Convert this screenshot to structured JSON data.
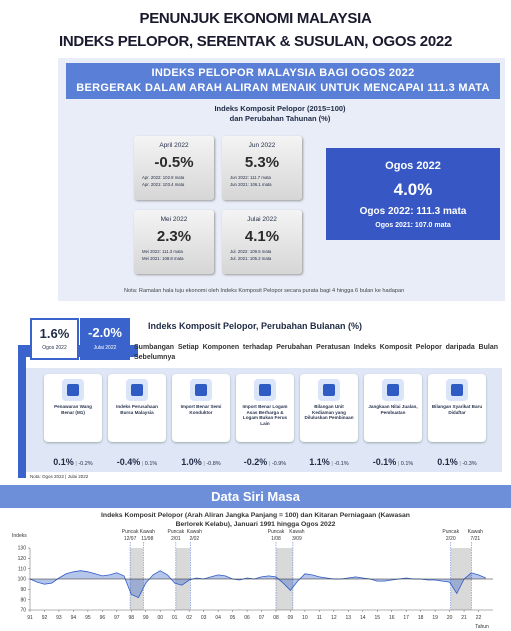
{
  "header": {
    "line1": "PENUNJUK EKONOMI MALAYSIA",
    "line2": "INDEKS PELOPOR, SERENTAK & SUSULAN, OGOS 2022"
  },
  "banner": {
    "line1": "INDEKS PELOPOR MALAYSIA BAGI OGOS 2022",
    "line2": "BERGERAK DALAM ARAH ALIRAN MENAIK UNTUK MENCAPAI 111.3 MATA"
  },
  "annual": {
    "title": "Indeks Komposit Pelopor (2015=100)",
    "title2": "dan Perubahan Tahunan (%)",
    "cards": [
      {
        "month": "April 2022",
        "change": "-0.5%",
        "current": "Apr. 2022: 102.8 mata",
        "previous": "Apr. 2021: 103.4 mata"
      },
      {
        "month": "Jun 2022",
        "change": "5.3%",
        "current": "Jun 2022: 111.7 mata",
        "previous": "Jun 2021: 106.1 mata"
      },
      {
        "month": "Mei 2022",
        "change": "2.3%",
        "current": "Mei 2022: 111.3 mata",
        "previous": "Mei 2021: 108.8 mata"
      },
      {
        "month": "Julai 2022",
        "change": "4.1%",
        "current": "Jul. 2022: 109.5 mata",
        "previous": "Jul. 2021: 105.2 mata"
      }
    ]
  },
  "highlight": {
    "month": "Ogos 2022",
    "change": "4.0%",
    "current": "Ogos 2022: 111.3 mata",
    "previous": "Ogos 2021: 107.0 mata"
  },
  "note": "Nota: Ramalan hala tuju ekonomi oleh Indeks Komposit Pelopor secara purata bagi 4 hingga 6 bulan ke hadapan",
  "monthly": {
    "current": {
      "value": "1.6%",
      "label": "Ogos 2022"
    },
    "previous": {
      "value": "-2.0%",
      "label": "Julai 2022"
    },
    "title": "Indeks Komposit Pelopor, Perubahan Bulanan (%)",
    "subtitle": "Sumbangan Setiap Komponen terhadap Perubahan Peratusan Indeks Komposit Pelopor daripada Bulan Sebelumnya",
    "components": [
      {
        "name": "Penawaran Wang Benar (M1)",
        "current": "0.1%",
        "previous": "-0.2%"
      },
      {
        "name": "Indeks Perusahaan Bursa Malaysia",
        "current": "-0.4%",
        "previous": "0.1%"
      },
      {
        "name": "Import Benar Semi Konduktor",
        "current": "1.0%",
        "previous": "-0.8%"
      },
      {
        "name": "Import Benar Logam Asas Berharga & Logam Bukan Ferus Lain",
        "current": "-0.2%",
        "previous": "-0.9%"
      },
      {
        "name": "Bilangan Unit Kediaman yang Diluluskan Pembinaan",
        "current": "1.1%",
        "previous": "-0.1%"
      },
      {
        "name": "Jangkaan Nilai Jualan, Pembuatan",
        "current": "-0.1%",
        "previous": "0.1%"
      },
      {
        "name": "Bilangan Syarikat Baru Didaftar",
        "current": "0.1%",
        "previous": "-0.3%"
      }
    ],
    "note": "Nota: Ogos 2022 | Julai 2022"
  },
  "section_title": "Data Siri Masa",
  "chart_data": {
    "type": "line",
    "title": "Indeks Komposit Pelopor (Arah Aliran Jangka Panjang = 100) dan Kitaran Perniagaan (Kawasan Berlorek Kelabu), Januari 1991 hingga Ogos 2022",
    "y_label": "Indeks",
    "x_label": "Tahun",
    "trend_line": 100,
    "color": "#2f5bc4",
    "x": [
      1991,
      1991.5,
      1992,
      1992.5,
      1993,
      1993.5,
      1994,
      1994.5,
      1995,
      1995.5,
      1996,
      1996.5,
      1997,
      1997.5,
      1998,
      1998.5,
      1999,
      1999.5,
      2000,
      2000.5,
      2001,
      2001.5,
      2002,
      2002.5,
      2003,
      2003.5,
      2004,
      2004.5,
      2005,
      2005.5,
      2006,
      2006.5,
      2007,
      2007.5,
      2008,
      2008.5,
      2009,
      2009.5,
      2010,
      2010.5,
      2011,
      2011.5,
      2012,
      2012.5,
      2013,
      2013.5,
      2014,
      2014.5,
      2015,
      2015.5,
      2016,
      2016.5,
      2017,
      2017.5,
      2018,
      2018.5,
      2019,
      2019.5,
      2020,
      2020.5,
      2021,
      2021.5,
      2022,
      2022.5
    ],
    "series": [
      {
        "name": "Indeks Komposit Pelopor",
        "values": [
          100,
          97,
          95,
          96,
          101,
          105,
          107,
          108,
          107,
          105,
          103,
          104,
          106,
          103,
          85,
          82,
          96,
          104,
          108,
          104,
          96,
          94,
          99,
          101,
          100,
          102,
          104,
          103,
          100,
          99,
          101,
          100,
          102,
          103,
          102,
          96,
          89,
          98,
          105,
          104,
          102,
          101,
          100,
          100,
          101,
          102,
          101,
          100,
          98,
          98,
          99,
          100,
          101,
          100,
          100,
          99,
          99,
          98,
          97,
          86,
          100,
          106,
          104,
          101
        ]
      }
    ],
    "shading": [
      {
        "start": 1997.92,
        "end": 1998.83,
        "start_label": "12/97",
        "end_label": "11/98"
      },
      {
        "start": 2001.08,
        "end": 2002.08,
        "start_label": "2/01",
        "end_label": "2/02"
      },
      {
        "start": 2008.0,
        "end": 2009.17,
        "start_label": "1/08",
        "end_label": "3/09"
      },
      {
        "start": 2020.08,
        "end": 2021.5,
        "start_label": "2/20",
        "end_label": "7/21"
      }
    ],
    "peak_word": "Puncak",
    "trough_word": "Kawah",
    "xlim": [
      1991,
      2023
    ],
    "ylim": [
      70,
      130
    ],
    "yticks": [
      70,
      80,
      90,
      100,
      110,
      120,
      130
    ],
    "xticks": [
      {
        "value": 1991,
        "label": "91"
      },
      {
        "value": 1992,
        "label": "92"
      },
      {
        "value": 1993,
        "label": "93"
      },
      {
        "value": 1994,
        "label": "94"
      },
      {
        "value": 1995,
        "label": "95"
      },
      {
        "value": 1996,
        "label": "96"
      },
      {
        "value": 1997,
        "label": "97"
      },
      {
        "value": 1998,
        "label": "98"
      },
      {
        "value": 1999,
        "label": "99"
      },
      {
        "value": 2000,
        "label": "00"
      },
      {
        "value": 2001,
        "label": "01"
      },
      {
        "value": 2002,
        "label": "02"
      },
      {
        "value": 2003,
        "label": "03"
      },
      {
        "value": 2004,
        "label": "04"
      },
      {
        "value": 2005,
        "label": "05"
      },
      {
        "value": 2006,
        "label": "06"
      },
      {
        "value": 2007,
        "label": "07"
      },
      {
        "value": 2008,
        "label": "08"
      },
      {
        "value": 2009,
        "label": "09"
      },
      {
        "value": 2010,
        "label": "10"
      },
      {
        "value": 2011,
        "label": "11"
      },
      {
        "value": 2012,
        "label": "12"
      },
      {
        "value": 2013,
        "label": "13"
      },
      {
        "value": 2014,
        "label": "14"
      },
      {
        "value": 2015,
        "label": "15"
      },
      {
        "value": 2016,
        "label": "16"
      },
      {
        "value": 2017,
        "label": "17"
      },
      {
        "value": 2018,
        "label": "18"
      },
      {
        "value": 2019,
        "label": "19"
      },
      {
        "value": 2020,
        "label": "20"
      },
      {
        "value": 2021,
        "label": "21"
      },
      {
        "value": 2022,
        "label": "22"
      }
    ]
  }
}
